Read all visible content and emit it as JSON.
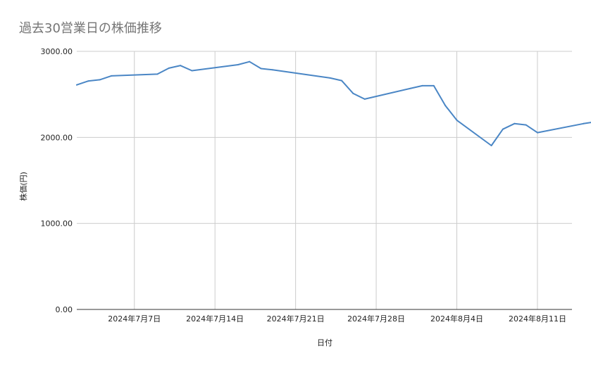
{
  "chart_data": {
    "type": "line",
    "title": "過去30営業日の株価推移",
    "xlabel": "日付",
    "ylabel": "株価(円)",
    "ylim": [
      0,
      3000
    ],
    "yticks": [
      "0.00",
      "1000.00",
      "2000.00",
      "3000.00"
    ],
    "xticks": [
      {
        "date": "2024-07-07",
        "label": "2024年7月7日"
      },
      {
        "date": "2024-07-14",
        "label": "2024年7月14日"
      },
      {
        "date": "2024-07-21",
        "label": "2024年7月21日"
      },
      {
        "date": "2024-07-28",
        "label": "2024年7月28日"
      },
      {
        "date": "2024-08-04",
        "label": "2024年8月4日"
      },
      {
        "date": "2024-08-11",
        "label": "2024年8月11日"
      }
    ],
    "xlim": [
      "2024-07-02",
      "2024-08-14"
    ],
    "grid": true,
    "legend": "none",
    "line_color": "#4a86c5",
    "series": [
      {
        "points": [
          {
            "x": "2024-07-02",
            "y": 2610
          },
          {
            "x": "2024-07-03",
            "y": 2655
          },
          {
            "x": "2024-07-04",
            "y": 2670
          },
          {
            "x": "2024-07-05",
            "y": 2715
          },
          {
            "x": "2024-07-09",
            "y": 2735
          },
          {
            "x": "2024-07-10",
            "y": 2805
          },
          {
            "x": "2024-07-11",
            "y": 2835
          },
          {
            "x": "2024-07-12",
            "y": 2775
          },
          {
            "x": "2024-07-16",
            "y": 2845
          },
          {
            "x": "2024-07-17",
            "y": 2880
          },
          {
            "x": "2024-07-18",
            "y": 2800
          },
          {
            "x": "2024-07-19",
            "y": 2785
          },
          {
            "x": "2024-07-24",
            "y": 2690
          },
          {
            "x": "2024-07-25",
            "y": 2660
          },
          {
            "x": "2024-07-26",
            "y": 2510
          },
          {
            "x": "2024-07-27",
            "y": 2445
          },
          {
            "x": "2024-07-31",
            "y": 2570
          },
          {
            "x": "2024-08-01",
            "y": 2600
          },
          {
            "x": "2024-08-02",
            "y": 2600
          },
          {
            "x": "2024-08-03",
            "y": 2370
          },
          {
            "x": "2024-08-04",
            "y": 2200
          },
          {
            "x": "2024-08-07",
            "y": 1905
          },
          {
            "x": "2024-08-08",
            "y": 2095
          },
          {
            "x": "2024-08-09",
            "y": 2160
          },
          {
            "x": "2024-08-10",
            "y": 2145
          },
          {
            "x": "2024-08-11",
            "y": 2055
          },
          {
            "x": "2024-08-15",
            "y": 2160
          },
          {
            "x": "2024-08-16",
            "y": 2180
          }
        ]
      }
    ]
  }
}
